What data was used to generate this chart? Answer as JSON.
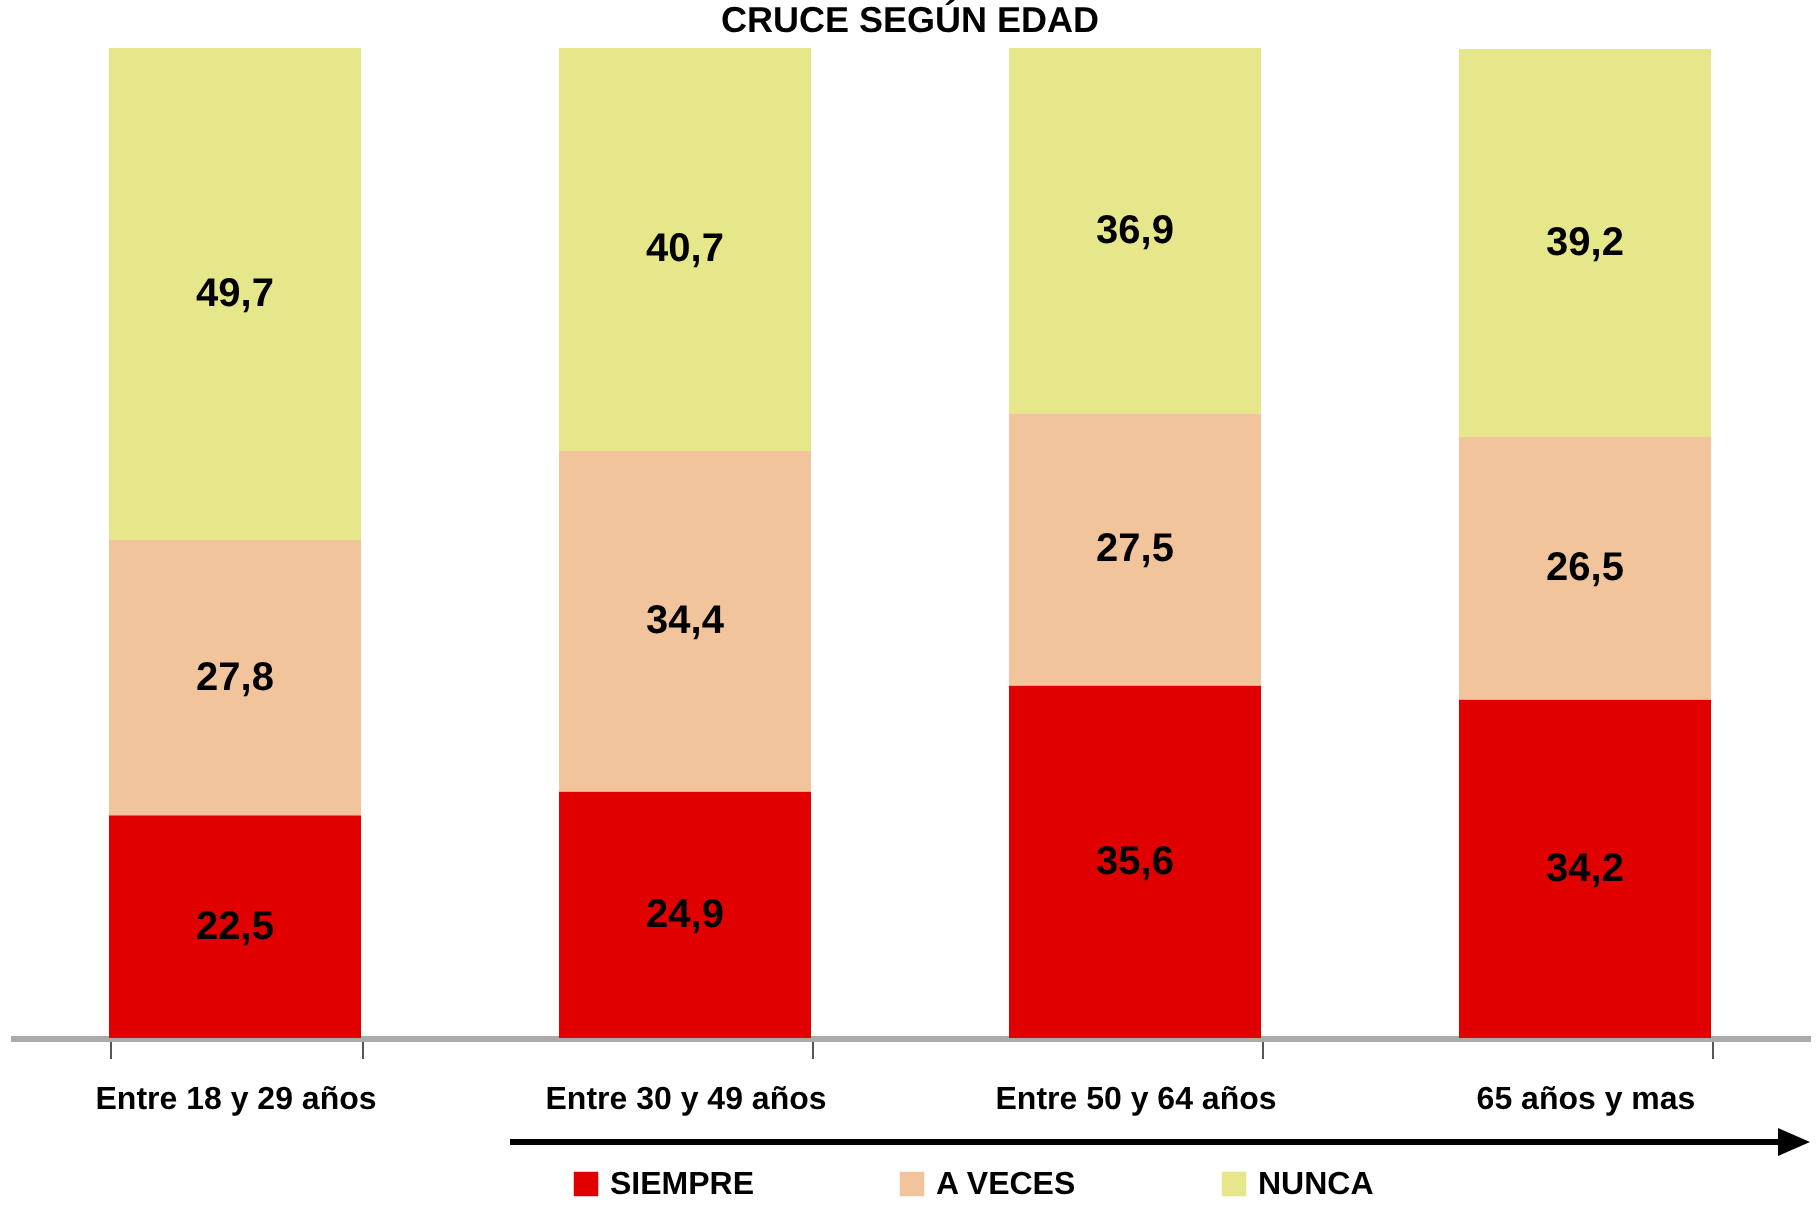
{
  "chart_data": {
    "type": "bar",
    "title": "CRUCE SEGÚN EDAD",
    "categories": [
      "Entre 18 y 29 años",
      "Entre 30 y 49 años",
      "Entre 50 y 64 años",
      "65 años y mas"
    ],
    "series": [
      {
        "name": "SIEMPRE",
        "color": "#e00000",
        "values": [
          22.5,
          24.9,
          35.6,
          34.2
        ],
        "value_labels": [
          "22,5",
          "24,9",
          "35,6",
          "34,2"
        ]
      },
      {
        "name": "A VECES",
        "color": "#f2c49c",
        "values": [
          27.8,
          34.4,
          27.5,
          26.5
        ],
        "value_labels": [
          "27,8",
          "34,4",
          "27,5",
          "26,5"
        ]
      },
      {
        "name": "NUNCA",
        "color": "#e6e68a",
        "values": [
          49.7,
          40.7,
          36.9,
          39.2
        ],
        "value_labels": [
          "49,7",
          "40,7",
          "36,9",
          "39,2"
        ]
      }
    ],
    "stacked": true,
    "legend": "bottom"
  }
}
